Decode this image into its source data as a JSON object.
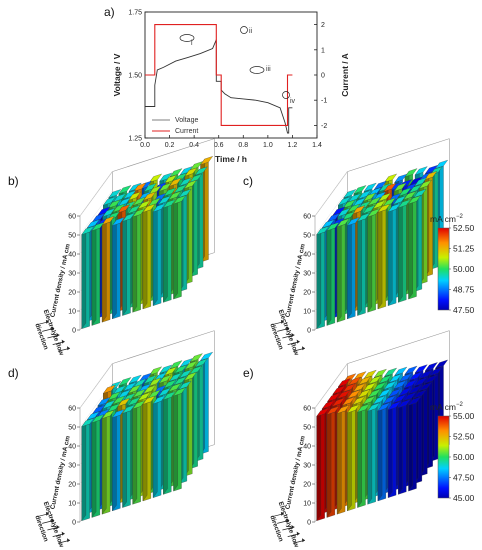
{
  "chart_data": [
    {
      "panel": "a)",
      "type": "line",
      "xlabel": "Time / h",
      "ylabel_left": "Voltage / V",
      "ylabel_right": "Current / A",
      "xlim": [
        0.0,
        1.4
      ],
      "ylim_left": [
        1.25,
        1.75
      ],
      "ylim_right": [
        -2.5,
        2.5
      ],
      "x_ticks": [
        "0.0",
        "0.2",
        "0.4",
        "0.6",
        "0.8",
        "1.0",
        "1.2",
        "1.4"
      ],
      "y_left_ticks": [
        "1.25",
        "1.50",
        "1.75"
      ],
      "y_right_ticks": [
        "2",
        "1",
        "0",
        "-1",
        "-2"
      ],
      "legend": [
        "Voltage",
        "Current"
      ],
      "series": [
        {
          "name": "Voltage",
          "axis": "left",
          "x": [
            0.0,
            0.08,
            0.08,
            0.1,
            0.15,
            0.25,
            0.35,
            0.45,
            0.55,
            0.58,
            0.58,
            0.62,
            0.62,
            0.65,
            0.7,
            0.8,
            0.9,
            1.0,
            1.1,
            1.14,
            1.16,
            1.17,
            1.17,
            1.2
          ],
          "y": [
            1.375,
            1.375,
            1.46,
            1.52,
            1.53,
            1.555,
            1.57,
            1.585,
            1.605,
            1.64,
            1.475,
            1.475,
            1.44,
            1.425,
            1.41,
            1.405,
            1.4,
            1.39,
            1.37,
            1.31,
            1.27,
            1.27,
            1.37,
            1.37
          ]
        },
        {
          "name": "Current",
          "axis": "right",
          "x": [
            0.0,
            0.08,
            0.08,
            0.58,
            0.58,
            0.62,
            0.62,
            1.16,
            1.16,
            1.2
          ],
          "y": [
            0,
            0,
            2,
            2,
            0,
            0,
            -2,
            -2,
            0,
            0
          ]
        }
      ],
      "annotations": [
        "i",
        "ii",
        "iii",
        "iv"
      ]
    },
    {
      "panel": "b)",
      "type": "bar3d",
      "zlabel": "Current density / mA cm",
      "zticks": [
        "0",
        "10",
        "20",
        "30",
        "40",
        "50",
        "60"
      ],
      "flow_label": [
        "direction",
        "Electrolyte flow"
      ],
      "values": [
        [
          49.6,
          49.9,
          51.4,
          49.1,
          49.6,
          50.2,
          50.9,
          49.4,
          49.8,
          50.1
        ],
        [
          49.2,
          48.3,
          49.9,
          51.9,
          49.8,
          50.6,
          50.2,
          49.5,
          50.2,
          49.6
        ],
        [
          48.6,
          49.5,
          50.1,
          49.8,
          50.2,
          51.2,
          48.7,
          49.9,
          49.8,
          50.4
        ],
        [
          48.1,
          50.1,
          49.4,
          50.8,
          49.1,
          50.5,
          50.3,
          51.2,
          49.6,
          49.8
        ],
        [
          49.5,
          49.5,
          49.4,
          51.6,
          49.7,
          48.4,
          50.6,
          49.9,
          50.9,
          49.7
        ],
        [
          49.5,
          49.9,
          49.4,
          48.7,
          50.7,
          49.5,
          50.1,
          49.4,
          50.3,
          51.3
        ]
      ]
    },
    {
      "panel": "c)",
      "type": "bar3d",
      "zlabel": "Current density / mA cm",
      "zticks": [
        "0",
        "10",
        "20",
        "30",
        "40",
        "50",
        "60"
      ],
      "flow_label": [
        "direction",
        "Electrolyte flow"
      ],
      "values": [
        [
          49.6,
          49.9,
          50.2,
          49.1,
          49.6,
          50.2,
          50.9,
          49.4,
          49.8,
          50.1
        ],
        [
          49.2,
          48.3,
          49.9,
          51.4,
          49.8,
          50.6,
          50.2,
          49.5,
          50.2,
          49.6
        ],
        [
          48.6,
          49.5,
          50.1,
          49.8,
          50.2,
          50.6,
          48.7,
          49.9,
          49.8,
          50.4
        ],
        [
          48.1,
          50.1,
          49.4,
          50.3,
          49.1,
          51.9,
          50.3,
          48.4,
          49.6,
          51.2
        ],
        [
          49.5,
          49.5,
          49.4,
          49.2,
          49.7,
          48.4,
          48.2,
          47.8,
          48.6,
          49.7
        ],
        [
          49.5,
          49.9,
          49.4,
          48.7,
          50.7,
          48.9,
          50.1,
          49.4,
          48.3,
          49.3
        ]
      ],
      "colorbar": {
        "unit": "mA cm",
        "ticks": [
          "52.50",
          "51.25",
          "50.00",
          "48.75",
          "47.50"
        ],
        "range": [
          47.5,
          52.5
        ]
      }
    },
    {
      "panel": "d)",
      "type": "bar3d",
      "zlabel": "Current density / mA cm",
      "zticks": [
        "0",
        "10",
        "20",
        "30",
        "40",
        "50",
        "60"
      ],
      "flow_label": [
        "direction",
        "Electrolyte flow"
      ],
      "values": [
        [
          49.6,
          49.9,
          50.4,
          49.1,
          49.6,
          50.2,
          50.9,
          49.4,
          49.8,
          50.1
        ],
        [
          49.2,
          48.8,
          49.9,
          51.1,
          49.8,
          50.6,
          50.2,
          49.5,
          50.2,
          49.6
        ],
        [
          48.6,
          49.5,
          50.1,
          49.8,
          50.2,
          50.5,
          48.7,
          49.9,
          49.8,
          50.4
        ],
        [
          48.9,
          50.1,
          49.4,
          50.3,
          49.1,
          50.5,
          50.3,
          49.6,
          49.6,
          49.8
        ],
        [
          51.5,
          49.5,
          49.4,
          49.6,
          49.7,
          49.4,
          50.6,
          49.9,
          50.3,
          49.7
        ],
        [
          49.5,
          49.9,
          49.4,
          48.7,
          50.3,
          49.5,
          50.1,
          49.4,
          50.3,
          49.3
        ]
      ]
    },
    {
      "panel": "e)",
      "type": "bar3d",
      "zlabel": "Current density / mA cm",
      "zticks": [
        "0",
        "10",
        "20",
        "30",
        "40",
        "50",
        "60"
      ],
      "flow_label": [
        "direction",
        "Electrolyte flow"
      ],
      "values": [
        [
          55.0,
          54.2,
          53.0,
          51.6,
          50.2,
          49.0,
          47.4,
          46.2,
          45.6,
          45.2
        ],
        [
          55.0,
          54.6,
          53.4,
          52.0,
          50.4,
          48.8,
          47.2,
          46.0,
          45.4,
          45.0
        ],
        [
          55.0,
          54.8,
          53.2,
          51.8,
          50.2,
          48.6,
          47.0,
          45.8,
          45.2,
          45.0
        ],
        [
          55.0,
          54.4,
          52.8,
          51.4,
          50.0,
          48.8,
          47.4,
          46.0,
          45.4,
          45.0
        ],
        [
          55.0,
          54.0,
          52.6,
          51.2,
          49.8,
          48.6,
          47.2,
          46.2,
          45.4,
          45.2
        ],
        [
          53.6,
          53.0,
          52.0,
          50.8,
          49.6,
          48.4,
          47.2,
          46.2,
          45.6,
          45.2
        ]
      ],
      "colorbar": {
        "unit": "mA cm",
        "ticks": [
          "55.00",
          "52.50",
          "50.00",
          "47.50",
          "45.00"
        ],
        "range": [
          45.0,
          55.0
        ]
      }
    }
  ]
}
